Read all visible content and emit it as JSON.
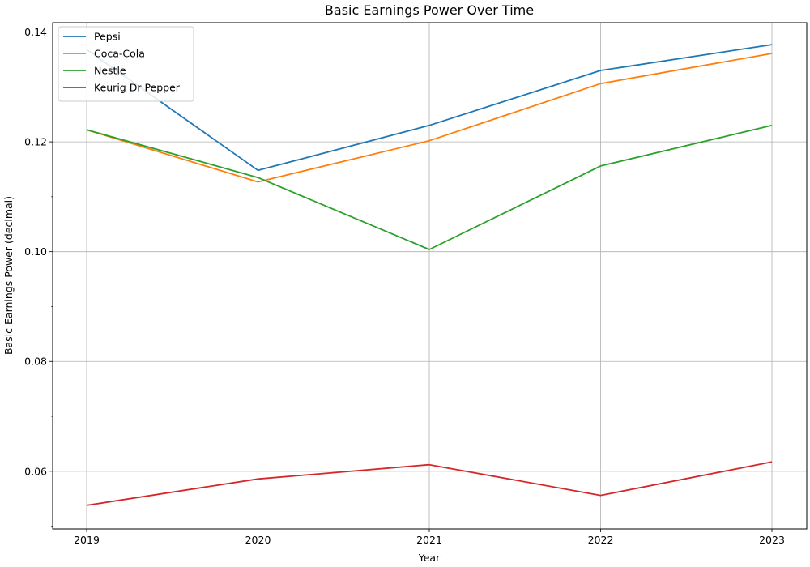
{
  "chart_data": {
    "type": "line",
    "title": "Basic Earnings Power Over Time",
    "xlabel": "Year",
    "ylabel": "Basic Earnings Power (decimal)",
    "x": [
      "2019",
      "2020",
      "2021",
      "2022",
      "2023"
    ],
    "yticks": [
      "0.06",
      "0.08",
      "0.10",
      "0.12",
      "0.14"
    ],
    "ylim": [
      0.0495,
      0.1417
    ],
    "grid": true,
    "legend_position": "upper-left",
    "series": [
      {
        "name": "Pepsi",
        "color": "#1f77b4",
        "values": [
          0.1368,
          0.1148,
          0.123,
          0.133,
          0.1377
        ]
      },
      {
        "name": "Coca-Cola",
        "color": "#ff7f0e",
        "values": [
          0.1222,
          0.1127,
          0.1202,
          0.1306,
          0.1361
        ]
      },
      {
        "name": "Nestle",
        "color": "#2ca02c",
        "values": [
          0.1222,
          0.1135,
          0.1004,
          0.1156,
          0.123
        ]
      },
      {
        "name": "Keurig Dr Pepper",
        "color": "#d62728",
        "values": [
          0.0538,
          0.0586,
          0.0612,
          0.0556,
          0.0617
        ]
      }
    ]
  }
}
